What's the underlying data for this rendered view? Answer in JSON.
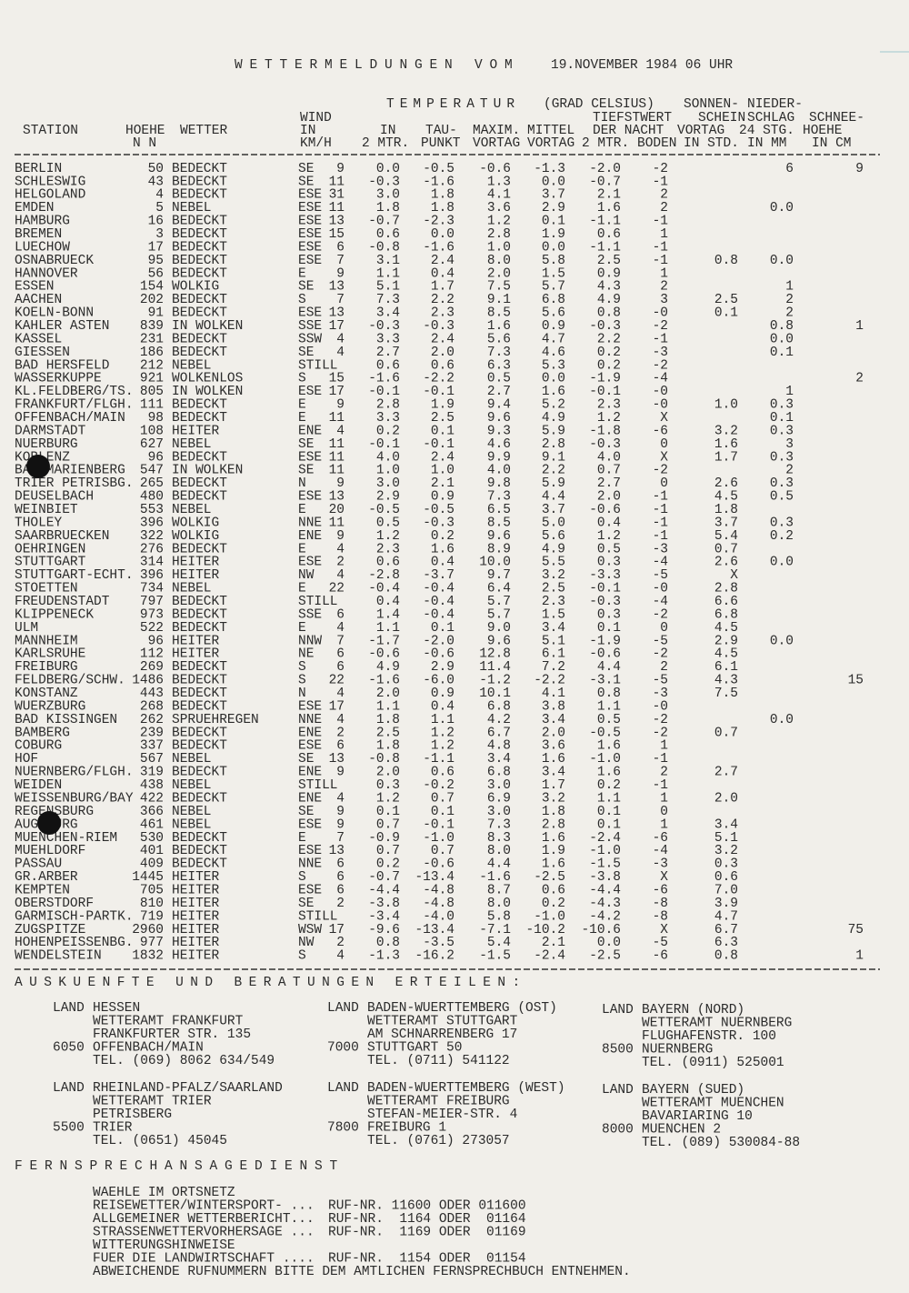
{
  "title": "WETTERMELDUNGEN VOM",
  "date": "19.NOVEMBER 1984 06 UHR",
  "temperatur": "TEMPERATUR",
  "temperatur_unit": "(GRAD CELSIUS)",
  "columns": [
    [
      "STATION"
    ],
    [
      "HOEHE",
      "N N"
    ],
    [
      "WETTER"
    ],
    [
      "WIND",
      "IN",
      "KM/H"
    ],
    [
      "IN",
      "2 MTR."
    ],
    [
      "TAU-",
      "PUNKT"
    ],
    [
      "MAXIM.",
      "VORTAG"
    ],
    [
      "MITTEL",
      "VORTAG"
    ],
    [
      "TIEFSTWERT",
      "DER NACHT",
      "2 MTR.",
      "BODEN"
    ],
    [
      "SONNEN-",
      "SCHEIN",
      "VORTAG",
      "IN STD."
    ],
    [
      "NIEDER-",
      "SCHLAG",
      "24 STG.",
      "IN MM"
    ],
    [
      "SCHNEE-",
      "HOEHE",
      "IN CM"
    ]
  ],
  "rows": [
    [
      "BERLIN",
      "50",
      "BEDECKT",
      "SE",
      "9",
      "0.0",
      "-0.5",
      "-0.6",
      "-1.3",
      "-2.0",
      "-2",
      null,
      "6",
      "9"
    ],
    [
      "SCHLESWIG",
      "43",
      "BEDECKT",
      "SE",
      "11",
      "-0.3",
      "-1.6",
      "1.3",
      "0.0",
      "-0.7",
      "-1",
      null,
      null,
      null
    ],
    [
      "HELGOLAND",
      "4",
      "BEDECKT",
      "ESE",
      "31",
      "3.0",
      "1.8",
      "4.1",
      "3.7",
      "2.1",
      "2",
      null,
      null,
      null
    ],
    [
      "EMDEN",
      "5",
      "NEBEL",
      "ESE",
      "11",
      "1.8",
      "1.8",
      "3.6",
      "2.9",
      "1.6",
      "2",
      null,
      "0.0",
      null
    ],
    [
      "HAMBURG",
      "16",
      "BEDECKT",
      "ESE",
      "13",
      "-0.7",
      "-2.3",
      "1.2",
      "0.1",
      "-1.1",
      "-1",
      null,
      null,
      null
    ],
    [
      "BREMEN",
      "3",
      "BEDECKT",
      "ESE",
      "15",
      "0.6",
      "0.0",
      "2.8",
      "1.9",
      "0.6",
      "1",
      null,
      null,
      null
    ],
    [
      "LUECHOW",
      "17",
      "BEDECKT",
      "ESE",
      "6",
      "-0.8",
      "-1.6",
      "1.0",
      "0.0",
      "-1.1",
      "-1",
      null,
      null,
      null
    ],
    [
      "OSNABRUECK",
      "95",
      "BEDECKT",
      "ESE",
      "7",
      "3.1",
      "2.4",
      "8.0",
      "5.8",
      "2.5",
      "-1",
      "0.8",
      "0.0",
      null
    ],
    [
      "HANNOVER",
      "56",
      "BEDECKT",
      "E",
      "9",
      "1.1",
      "0.4",
      "2.0",
      "1.5",
      "0.9",
      "1",
      null,
      null,
      null
    ],
    [
      "ESSEN",
      "154",
      "WOLKIG",
      "SE",
      "13",
      "5.1",
      "1.7",
      "7.5",
      "5.7",
      "4.3",
      "2",
      null,
      "1",
      null
    ],
    [
      "AACHEN",
      "202",
      "BEDECKT",
      "S",
      "7",
      "7.3",
      "2.2",
      "9.1",
      "6.8",
      "4.9",
      "3",
      "2.5",
      "2",
      null
    ],
    [
      "KOELN-BONN",
      "91",
      "BEDECKT",
      "ESE",
      "13",
      "3.4",
      "2.3",
      "8.5",
      "5.6",
      "0.8",
      "-0",
      "0.1",
      "2",
      null
    ],
    [
      "KAHLER ASTEN",
      "839",
      "IN WOLKEN",
      "SSE",
      "17",
      "-0.3",
      "-0.3",
      "1.6",
      "0.9",
      "-0.3",
      "-2",
      null,
      "0.8",
      "1"
    ],
    [
      "KASSEL",
      "231",
      "BEDECKT",
      "SSW",
      "4",
      "3.3",
      "2.4",
      "5.6",
      "4.7",
      "2.2",
      "-1",
      null,
      "0.0",
      null
    ],
    [
      "GIESSEN",
      "186",
      "BEDECKT",
      "SE",
      "4",
      "2.7",
      "2.0",
      "7.3",
      "4.6",
      "0.2",
      "-3",
      null,
      "0.1",
      null
    ],
    [
      "BAD HERSFELD",
      "212",
      "NEBEL",
      "STILL",
      null,
      "0.6",
      "0.6",
      "6.3",
      "5.3",
      "0.2",
      "-2",
      null,
      null,
      null
    ],
    [
      "WASSERKUPPE",
      "921",
      "WOLKENLOS",
      "S",
      "15",
      "-1.6",
      "-2.2",
      "0.5",
      "0.0",
      "-1.9",
      "-4",
      null,
      null,
      "2"
    ],
    [
      "KL.FELDBERG/TS.",
      "805",
      "IN WOLKEN",
      "ESE",
      "17",
      "-0.1",
      "-0.1",
      "2.7",
      "1.6",
      "-0.1",
      "-0",
      null,
      "1",
      null
    ],
    [
      "FRANKFURT/FLGH.",
      "111",
      "BEDECKT",
      "E",
      "9",
      "2.8",
      "1.9",
      "9.4",
      "5.2",
      "2.3",
      "-0",
      "1.0",
      "0.3",
      null
    ],
    [
      "OFFENBACH/MAIN",
      "98",
      "BEDECKT",
      "E",
      "11",
      "3.3",
      "2.5",
      "9.6",
      "4.9",
      "1.2",
      "X",
      null,
      "0.1",
      null
    ],
    [
      "DARMSTADT",
      "108",
      "HEITER",
      "ENE",
      "4",
      "0.2",
      "0.1",
      "9.3",
      "5.9",
      "-1.8",
      "-6",
      "3.2",
      "0.3",
      null
    ],
    [
      "NUERBURG",
      "627",
      "NEBEL",
      "SE",
      "11",
      "-0.1",
      "-0.1",
      "4.6",
      "2.8",
      "-0.3",
      "0",
      "1.6",
      "3",
      null
    ],
    [
      "KOBLENZ",
      "96",
      "BEDECKT",
      "ESE",
      "11",
      "4.0",
      "2.4",
      "9.9",
      "9.1",
      "4.0",
      "X",
      "1.7",
      "0.3",
      null
    ],
    [
      "BAD MARIENBERG",
      "547",
      "IN WOLKEN",
      "SE",
      "11",
      "1.0",
      "1.0",
      "4.0",
      "2.2",
      "0.7",
      "-2",
      null,
      "2",
      null
    ],
    [
      "TRIER PETRISBG.",
      "265",
      "BEDECKT",
      "N",
      "9",
      "3.0",
      "2.1",
      "9.8",
      "5.9",
      "2.7",
      "0",
      "2.6",
      "0.3",
      null
    ],
    [
      "DEUSELBACH",
      "480",
      "BEDECKT",
      "ESE",
      "13",
      "2.9",
      "0.9",
      "7.3",
      "4.4",
      "2.0",
      "-1",
      "4.5",
      "0.5",
      null
    ],
    [
      "WEINBIET",
      "553",
      "NEBEL",
      "E",
      "20",
      "-0.5",
      "-0.5",
      "6.5",
      "3.7",
      "-0.6",
      "-1",
      "1.8",
      null,
      null
    ],
    [
      "THOLEY",
      "396",
      "WOLKIG",
      "NNE",
      "11",
      "0.5",
      "-0.3",
      "8.5",
      "5.0",
      "0.4",
      "-1",
      "3.7",
      "0.3",
      null
    ],
    [
      "SAARBRUECKEN",
      "322",
      "WOLKIG",
      "ENE",
      "9",
      "1.2",
      "0.2",
      "9.6",
      "5.6",
      "1.2",
      "-1",
      "5.4",
      "0.2",
      null
    ],
    [
      "OEHRINGEN",
      "276",
      "BEDECKT",
      "E",
      "4",
      "2.3",
      "1.6",
      "8.9",
      "4.9",
      "0.5",
      "-3",
      "0.7",
      null,
      null
    ],
    [
      "STUTTGART",
      "314",
      "HEITER",
      "ESE",
      "2",
      "0.6",
      "0.4",
      "10.0",
      "5.5",
      "0.3",
      "-4",
      "2.6",
      "0.0",
      null
    ],
    [
      "STUTTGART-ECHT.",
      "396",
      "HEITER",
      "NW",
      "4",
      "-2.8",
      "-3.7",
      "9.7",
      "3.2",
      "-3.3",
      "-5",
      "X",
      null,
      null
    ],
    [
      "STOETTEN",
      "734",
      "NEBEL",
      "E",
      "22",
      "-0.4",
      "-0.4",
      "6.4",
      "2.5",
      "-0.1",
      "-0",
      "2.8",
      null,
      null
    ],
    [
      "FREUDENSTADT",
      "797",
      "BEDECKT",
      "STILL",
      null,
      "0.4",
      "-0.4",
      "5.7",
      "2.3",
      "-0.3",
      "-4",
      "6.6",
      null,
      null
    ],
    [
      "KLIPPENECK",
      "973",
      "BEDECKT",
      "SSE",
      "6",
      "1.4",
      "-0.4",
      "5.7",
      "1.5",
      "0.3",
      "-2",
      "6.8",
      null,
      null
    ],
    [
      "ULM",
      "522",
      "BEDECKT",
      "E",
      "4",
      "1.1",
      "0.1",
      "9.0",
      "3.4",
      "0.1",
      "0",
      "4.5",
      null,
      null
    ],
    [
      "MANNHEIM",
      "96",
      "HEITER",
      "NNW",
      "7",
      "-1.7",
      "-2.0",
      "9.6",
      "5.1",
      "-1.9",
      "-5",
      "2.9",
      "0.0",
      null
    ],
    [
      "KARLSRUHE",
      "112",
      "HEITER",
      "NE",
      "6",
      "-0.6",
      "-0.6",
      "12.8",
      "6.1",
      "-0.6",
      "-2",
      "4.5",
      null,
      null
    ],
    [
      "FREIBURG",
      "269",
      "BEDECKT",
      "S",
      "6",
      "4.9",
      "2.9",
      "11.4",
      "7.2",
      "4.4",
      "2",
      "6.1",
      null,
      null
    ],
    [
      "FELDBERG/SCHW.",
      "1486",
      "BEDECKT",
      "S",
      "22",
      "-1.6",
      "-6.0",
      "-1.2",
      "-2.2",
      "-3.1",
      "-5",
      "4.3",
      null,
      "15"
    ],
    [
      "KONSTANZ",
      "443",
      "BEDECKT",
      "N",
      "4",
      "2.0",
      "0.9",
      "10.1",
      "4.1",
      "0.8",
      "-3",
      "7.5",
      null,
      null
    ],
    [
      "WUERZBURG",
      "268",
      "BEDECKT",
      "ESE",
      "17",
      "1.1",
      "0.4",
      "6.8",
      "3.8",
      "1.1",
      "-0",
      null,
      null,
      null
    ],
    [
      "BAD KISSINGEN",
      "262",
      "SPRUEHREGEN",
      "NNE",
      "4",
      "1.8",
      "1.1",
      "4.2",
      "3.4",
      "0.5",
      "-2",
      null,
      "0.0",
      null
    ],
    [
      "BAMBERG",
      "239",
      "BEDECKT",
      "ENE",
      "2",
      "2.5",
      "1.2",
      "6.7",
      "2.0",
      "-0.5",
      "-2",
      "0.7",
      null,
      null
    ],
    [
      "COBURG",
      "337",
      "BEDECKT",
      "ESE",
      "6",
      "1.8",
      "1.2",
      "4.8",
      "3.6",
      "1.6",
      "1",
      null,
      null,
      null
    ],
    [
      "HOF",
      "567",
      "NEBEL",
      "SE",
      "13",
      "-0.8",
      "-1.1",
      "3.4",
      "1.6",
      "-1.0",
      "-1",
      null,
      null,
      null
    ],
    [
      "NUERNBERG/FLGH.",
      "319",
      "BEDECKT",
      "ENE",
      "9",
      "2.0",
      "0.6",
      "6.8",
      "3.4",
      "1.6",
      "2",
      "2.7",
      null,
      null
    ],
    [
      "WEIDEN",
      "438",
      "NEBEL",
      "STILL",
      null,
      "0.3",
      "-0.2",
      "3.0",
      "1.7",
      "0.2",
      "-1",
      null,
      null,
      null
    ],
    [
      "WEISSENBURG/BAY",
      "422",
      "BEDECKT",
      "ENE",
      "4",
      "1.2",
      "0.7",
      "6.9",
      "3.2",
      "1.1",
      "1",
      "2.0",
      null,
      null
    ],
    [
      "REGENSBURG",
      "366",
      "NEBEL",
      "SE",
      "9",
      "0.1",
      "0.1",
      "3.0",
      "1.8",
      "0.1",
      "0",
      null,
      null,
      null
    ],
    [
      "AUGSBURG",
      "461",
      "NEBEL",
      "ESE",
      "9",
      "0.7",
      "-0.1",
      "7.3",
      "2.8",
      "0.1",
      "1",
      "3.4",
      null,
      null
    ],
    [
      "MUENCHEN-RIEM",
      "530",
      "BEDECKT",
      "E",
      "7",
      "-0.9",
      "-1.0",
      "8.3",
      "1.6",
      "-2.4",
      "-6",
      "5.1",
      null,
      null
    ],
    [
      "MUEHLDORF",
      "401",
      "BEDECKT",
      "ESE",
      "13",
      "0.7",
      "0.7",
      "8.0",
      "1.9",
      "-1.0",
      "-4",
      "3.2",
      null,
      null
    ],
    [
      "PASSAU",
      "409",
      "BEDECKT",
      "NNE",
      "6",
      "0.2",
      "-0.6",
      "4.4",
      "1.6",
      "-1.5",
      "-3",
      "0.3",
      null,
      null
    ],
    [
      "GR.ARBER",
      "1445",
      "HEITER",
      "S",
      "6",
      "-0.7",
      "-13.4",
      "-1.6",
      "-2.5",
      "-3.8",
      "X",
      "0.6",
      null,
      null
    ],
    [
      "KEMPTEN",
      "705",
      "HEITER",
      "ESE",
      "6",
      "-4.4",
      "-4.8",
      "8.7",
      "0.6",
      "-4.4",
      "-6",
      "7.0",
      null,
      null
    ],
    [
      "OBERSTDORF",
      "810",
      "HEITER",
      "SE",
      "2",
      "-3.8",
      "-4.8",
      "8.0",
      "0.2",
      "-4.3",
      "-8",
      "3.9",
      null,
      null
    ],
    [
      "GARMISCH-PARTK.",
      "719",
      "HEITER",
      "STILL",
      null,
      "-3.4",
      "-4.0",
      "5.8",
      "-1.0",
      "-4.2",
      "-8",
      "4.7",
      null,
      null
    ],
    [
      "ZUGSPITZE",
      "2960",
      "HEITER",
      "WSW",
      "17",
      "-9.6",
      "-13.4",
      "-7.1",
      "-10.2",
      "-10.6",
      "X",
      "6.7",
      null,
      "75"
    ],
    [
      "HOHENPEISSENBG.",
      "977",
      "HEITER",
      "NW",
      "2",
      "0.8",
      "-3.5",
      "5.4",
      "2.1",
      "0.0",
      "-5",
      "6.3",
      null,
      null
    ],
    [
      "WENDELSTEIN",
      "1832",
      "HEITER",
      "S",
      "4",
      "-1.3",
      "-16.2",
      "-1.5",
      "-2.4",
      "-2.5",
      "-6",
      "0.8",
      null,
      "1"
    ]
  ],
  "auskunft": "AUSKUENFTE UND BERATUNGEN ERTEILEN:",
  "offices": [
    {
      "label": "LAND",
      "land": "HESSEN",
      "lines": [
        "WETTERAMT FRANKFURT",
        "FRANKFURTER STR. 135",
        "OFFENBACH/MAIN",
        "TEL. (069) 8062 634/549"
      ],
      "plz": "6050"
    },
    {
      "label": "LAND",
      "land": "BADEN-WUERTTEMBERG (OST)",
      "lines": [
        "WETTERAMT STUTTGART",
        "AM SCHNARRENBERG 17",
        "STUTTGART 50",
        "TEL. (0711) 541122"
      ],
      "plz": "7000"
    },
    {
      "label": "LAND",
      "land": "BAYERN (NORD)",
      "lines": [
        "WETTERAMT NUERNBERG",
        "FLUGHAFENSTR. 100",
        "NUERNBERG",
        "TEL. (0911) 525001"
      ],
      "plz": "8500"
    },
    {
      "label": "LAND",
      "land": "RHEINLAND-PFALZ/SAARLAND",
      "lines": [
        "WETTERAMT TRIER",
        "PETRISBERG",
        "TRIER",
        "TEL. (0651) 45045"
      ],
      "plz": "5500"
    },
    {
      "label": "LAND",
      "land": "BADEN-WUERTTEMBERG (WEST)",
      "lines": [
        "WETTERAMT FREIBURG",
        "STEFAN-MEIER-STR. 4",
        "FREIBURG 1",
        "TEL. (0761) 273057"
      ],
      "plz": "7800"
    },
    {
      "label": "LAND",
      "land": "BAYERN (SUED)",
      "lines": [
        "WETTERAMT MUENCHEN",
        "BAVARIARING 10",
        "MUENCHEN 2",
        "TEL. (089) 530084-88"
      ],
      "plz": "8000"
    }
  ],
  "fernsprech": "FERNSPRECHANSAGEDIENST",
  "services": [
    {
      "text": "WAEHLE IM ORTSNETZ"
    },
    {
      "text": "REISEWETTER/WINTERSPORT- ...",
      "number": "RUF-NR. 11600 ODER 011600"
    },
    {
      "text": "ALLGEMEINER WETTERBERICHT...",
      "number": "RUF-NR.  1164 ODER  01164"
    },
    {
      "text": "STRASSENWETTERVORHERSAGE ...",
      "number": "RUF-NR.  1169 ODER  01169"
    },
    {
      "text": "WITTERUNGSHINWEISE"
    },
    {
      "text": "FUER DIE LANDWIRTSCHAFT ....",
      "number": "RUF-NR.  1154 ODER  01154"
    },
    {
      "text": "ABWEICHENDE RUFNUMMERN BITTE DEM AMTLICHEN FERNSPRECHBUCH ENTNEHMEN."
    }
  ]
}
